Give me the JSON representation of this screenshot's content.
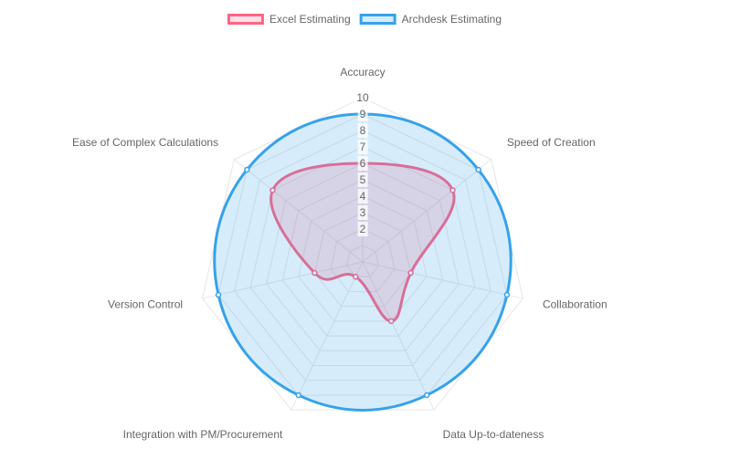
{
  "chart_data": {
    "type": "radar",
    "title": "",
    "categories": [
      "Accuracy",
      "Speed of Creation",
      "Collaboration",
      "Data Up-to-dateness",
      "Integration with PM/Procurement",
      "Version Control",
      "Ease of Complex Calculations"
    ],
    "rlim": [
      0,
      10
    ],
    "ticks": [
      {
        "value": 2,
        "label": "2"
      },
      {
        "value": 3,
        "label": "3"
      },
      {
        "value": 4,
        "label": "4"
      },
      {
        "value": 5,
        "label": "5"
      },
      {
        "value": 6,
        "label": "6"
      },
      {
        "value": 7,
        "label": "7"
      },
      {
        "value": 8,
        "label": "8"
      },
      {
        "value": 9,
        "label": "9"
      },
      {
        "value": 10,
        "label": "10"
      }
    ],
    "grid": true,
    "legend_position": "top-center",
    "series": [
      {
        "name": "Excel Estimating",
        "values": [
          6,
          7,
          3,
          4,
          1,
          3,
          7
        ],
        "color": "#ff6384",
        "fill": "rgba(255, 99, 132, 0.2)"
      },
      {
        "name": "Archdesk Estimating",
        "values": [
          9,
          9,
          9,
          9,
          9,
          9,
          9
        ],
        "color": "#36a2eb",
        "fill": "rgba(54, 162, 235, 0.2)"
      }
    ]
  }
}
